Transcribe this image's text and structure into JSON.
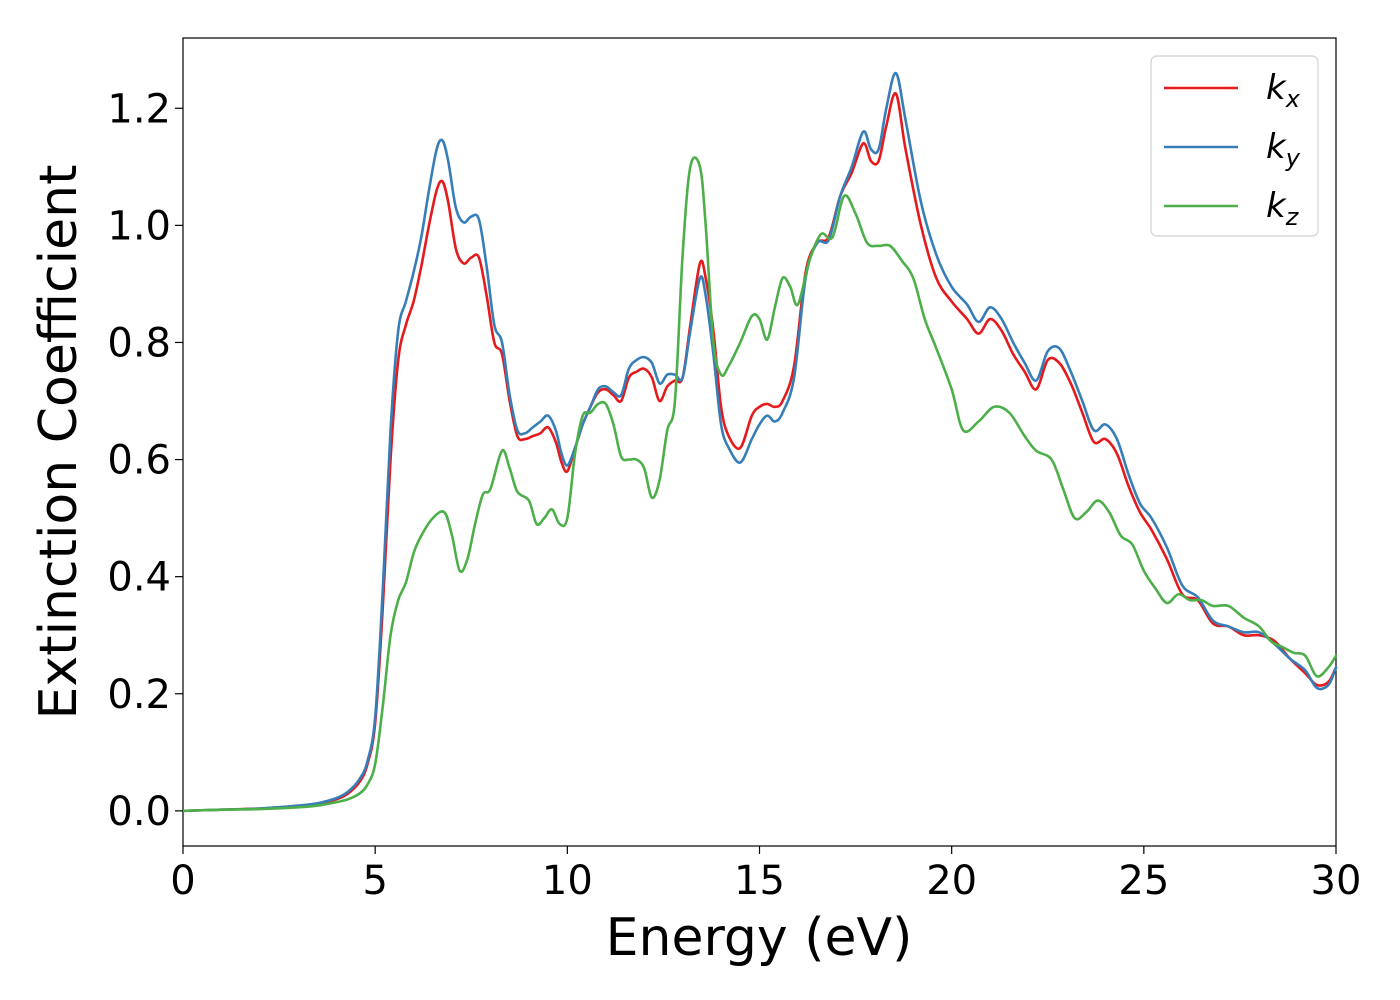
{
  "chart_data": {
    "type": "line",
    "xlabel": "Energy (eV)",
    "ylabel": "Extinction Coefficient",
    "xlim": [
      0,
      30
    ],
    "ylim": [
      -0.06,
      1.32
    ],
    "xticks": [
      0,
      5,
      10,
      15,
      20,
      25,
      30
    ],
    "xtick_labels": [
      "0",
      "5",
      "10",
      "15",
      "20",
      "25",
      "30"
    ],
    "yticks": [
      0.0,
      0.2,
      0.4,
      0.6,
      0.8,
      1.0,
      1.2
    ],
    "ytick_labels": [
      "0.0",
      "0.2",
      "0.4",
      "0.6",
      "0.8",
      "1.0",
      "1.2"
    ],
    "grid": false,
    "legend_position": "top-right",
    "series": [
      {
        "name": "k",
        "subscript": "x",
        "color": "#e41a1c",
        "x": [
          0,
          1,
          2,
          3,
          3.5,
          4,
          4.3,
          4.6,
          4.8,
          5,
          5.2,
          5.4,
          5.6,
          5.8,
          6,
          6.2,
          6.4,
          6.6,
          6.75,
          6.9,
          7.1,
          7.3,
          7.5,
          7.7,
          7.9,
          8.1,
          8.3,
          8.5,
          8.7,
          8.9,
          9.1,
          9.3,
          9.5,
          9.7,
          9.85,
          10,
          10.2,
          10.4,
          10.6,
          10.8,
          11,
          11.2,
          11.4,
          11.6,
          11.8,
          12,
          12.2,
          12.4,
          12.6,
          12.8,
          13,
          13.2,
          13.45,
          13.6,
          13.8,
          14,
          14.2,
          14.5,
          14.8,
          15,
          15.2,
          15.4,
          15.6,
          15.9,
          16.2,
          16.5,
          16.8,
          17.1,
          17.4,
          17.7,
          17.9,
          18.1,
          18.3,
          18.55,
          18.8,
          19.2,
          19.6,
          20,
          20.4,
          20.7,
          21,
          21.3,
          21.6,
          21.9,
          22.2,
          22.5,
          22.8,
          23.1,
          23.4,
          23.7,
          24,
          24.3,
          24.6,
          24.9,
          25.2,
          25.6,
          26,
          26.4,
          26.8,
          27.2,
          27.6,
          28,
          28.4,
          28.8,
          29.2,
          29.5,
          29.8,
          30
        ],
        "y": [
          0.0,
          0.002,
          0.004,
          0.008,
          0.012,
          0.02,
          0.03,
          0.05,
          0.08,
          0.15,
          0.35,
          0.6,
          0.77,
          0.83,
          0.87,
          0.93,
          1.0,
          1.06,
          1.075,
          1.04,
          0.96,
          0.935,
          0.945,
          0.945,
          0.88,
          0.8,
          0.78,
          0.7,
          0.64,
          0.635,
          0.64,
          0.645,
          0.655,
          0.63,
          0.595,
          0.58,
          0.62,
          0.66,
          0.69,
          0.715,
          0.72,
          0.71,
          0.7,
          0.74,
          0.75,
          0.755,
          0.74,
          0.7,
          0.725,
          0.735,
          0.74,
          0.83,
          0.935,
          0.91,
          0.82,
          0.69,
          0.64,
          0.62,
          0.675,
          0.69,
          0.695,
          0.69,
          0.7,
          0.76,
          0.92,
          0.97,
          0.98,
          1.05,
          1.09,
          1.14,
          1.11,
          1.11,
          1.17,
          1.225,
          1.13,
          1.0,
          0.91,
          0.87,
          0.84,
          0.815,
          0.84,
          0.82,
          0.78,
          0.75,
          0.72,
          0.77,
          0.765,
          0.73,
          0.68,
          0.63,
          0.635,
          0.61,
          0.555,
          0.51,
          0.48,
          0.43,
          0.37,
          0.36,
          0.32,
          0.315,
          0.3,
          0.3,
          0.29,
          0.26,
          0.235,
          0.215,
          0.22,
          0.245
        ]
      },
      {
        "name": "k",
        "subscript": "y",
        "color": "#377eb8",
        "x": [
          0,
          1,
          2,
          3,
          3.5,
          4,
          4.3,
          4.6,
          4.8,
          5,
          5.2,
          5.4,
          5.6,
          5.8,
          6,
          6.2,
          6.4,
          6.6,
          6.75,
          6.9,
          7.1,
          7.3,
          7.5,
          7.7,
          7.9,
          8.1,
          8.3,
          8.5,
          8.7,
          8.9,
          9.1,
          9.3,
          9.5,
          9.7,
          9.85,
          10,
          10.2,
          10.4,
          10.6,
          10.8,
          11,
          11.2,
          11.4,
          11.6,
          11.8,
          12,
          12.2,
          12.4,
          12.6,
          12.8,
          13,
          13.2,
          13.45,
          13.6,
          13.8,
          14,
          14.2,
          14.5,
          14.8,
          15,
          15.2,
          15.4,
          15.6,
          15.9,
          16.2,
          16.5,
          16.8,
          17.1,
          17.4,
          17.7,
          17.9,
          18.1,
          18.3,
          18.55,
          18.8,
          19.2,
          19.6,
          20,
          20.4,
          20.7,
          21,
          21.3,
          21.6,
          21.9,
          22.2,
          22.5,
          22.8,
          23.1,
          23.4,
          23.7,
          24,
          24.3,
          24.6,
          24.9,
          25.2,
          25.6,
          26,
          26.4,
          26.8,
          27.2,
          27.6,
          28,
          28.4,
          28.8,
          29.2,
          29.5,
          29.8,
          30
        ],
        "y": [
          0.0,
          0.002,
          0.004,
          0.009,
          0.013,
          0.022,
          0.033,
          0.055,
          0.085,
          0.16,
          0.38,
          0.65,
          0.82,
          0.87,
          0.92,
          0.98,
          1.06,
          1.13,
          1.145,
          1.11,
          1.03,
          1.005,
          1.015,
          1.01,
          0.93,
          0.83,
          0.8,
          0.71,
          0.65,
          0.645,
          0.655,
          0.665,
          0.675,
          0.65,
          0.61,
          0.59,
          0.62,
          0.66,
          0.69,
          0.72,
          0.725,
          0.715,
          0.71,
          0.755,
          0.77,
          0.775,
          0.765,
          0.73,
          0.745,
          0.745,
          0.74,
          0.82,
          0.91,
          0.88,
          0.78,
          0.66,
          0.62,
          0.595,
          0.635,
          0.66,
          0.675,
          0.665,
          0.68,
          0.74,
          0.91,
          0.97,
          0.975,
          1.05,
          1.1,
          1.16,
          1.13,
          1.13,
          1.2,
          1.26,
          1.18,
          1.04,
          0.95,
          0.895,
          0.865,
          0.835,
          0.86,
          0.84,
          0.8,
          0.765,
          0.735,
          0.785,
          0.79,
          0.75,
          0.7,
          0.65,
          0.66,
          0.635,
          0.575,
          0.525,
          0.5,
          0.45,
          0.385,
          0.365,
          0.325,
          0.315,
          0.305,
          0.305,
          0.285,
          0.26,
          0.24,
          0.21,
          0.215,
          0.245
        ]
      },
      {
        "name": "k",
        "subscript": "z",
        "color": "#4daf4a",
        "x": [
          0,
          1,
          2,
          3,
          3.5,
          4,
          4.3,
          4.6,
          4.8,
          5,
          5.2,
          5.4,
          5.6,
          5.8,
          6,
          6.2,
          6.5,
          6.8,
          7.0,
          7.2,
          7.4,
          7.6,
          7.8,
          8.0,
          8.3,
          8.5,
          8.7,
          9.0,
          9.2,
          9.4,
          9.6,
          9.8,
          10.0,
          10.2,
          10.4,
          10.6,
          10.8,
          11.0,
          11.2,
          11.4,
          11.6,
          11.8,
          12.0,
          12.2,
          12.4,
          12.6,
          12.8,
          13.0,
          13.2,
          13.45,
          13.6,
          13.8,
          14.0,
          14.2,
          14.5,
          14.8,
          15.0,
          15.2,
          15.4,
          15.6,
          15.8,
          16.0,
          16.3,
          16.6,
          16.9,
          17.2,
          17.5,
          17.8,
          18.1,
          18.4,
          18.7,
          19.0,
          19.3,
          19.6,
          20.0,
          20.3,
          20.7,
          21.1,
          21.5,
          21.9,
          22.2,
          22.6,
          22.9,
          23.2,
          23.5,
          23.8,
          24.1,
          24.4,
          24.7,
          25.0,
          25.3,
          25.6,
          25.9,
          26.2,
          26.5,
          26.8,
          27.2,
          27.6,
          28.0,
          28.3,
          28.6,
          28.9,
          29.2,
          29.5,
          29.8,
          30
        ],
        "y": [
          0.0,
          0.002,
          0.003,
          0.006,
          0.009,
          0.015,
          0.02,
          0.03,
          0.045,
          0.08,
          0.18,
          0.3,
          0.36,
          0.39,
          0.44,
          0.47,
          0.5,
          0.51,
          0.47,
          0.41,
          0.43,
          0.49,
          0.54,
          0.55,
          0.615,
          0.585,
          0.545,
          0.53,
          0.49,
          0.5,
          0.515,
          0.49,
          0.5,
          0.61,
          0.675,
          0.68,
          0.695,
          0.695,
          0.66,
          0.605,
          0.6,
          0.6,
          0.585,
          0.535,
          0.565,
          0.65,
          0.7,
          0.95,
          1.1,
          1.1,
          1.0,
          0.8,
          0.745,
          0.76,
          0.8,
          0.845,
          0.84,
          0.805,
          0.86,
          0.91,
          0.895,
          0.865,
          0.94,
          0.985,
          0.98,
          1.05,
          1.02,
          0.97,
          0.965,
          0.965,
          0.94,
          0.91,
          0.84,
          0.79,
          0.72,
          0.65,
          0.665,
          0.69,
          0.68,
          0.64,
          0.615,
          0.6,
          0.55,
          0.5,
          0.51,
          0.53,
          0.51,
          0.47,
          0.455,
          0.41,
          0.38,
          0.355,
          0.37,
          0.36,
          0.36,
          0.35,
          0.35,
          0.33,
          0.315,
          0.29,
          0.28,
          0.27,
          0.265,
          0.23,
          0.245,
          0.265
        ]
      }
    ]
  }
}
